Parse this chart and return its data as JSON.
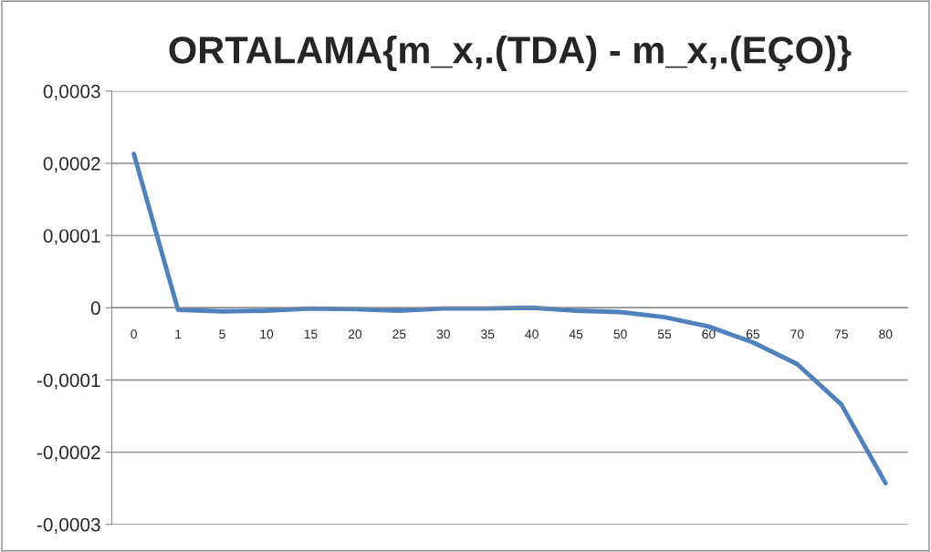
{
  "chart_data": {
    "type": "line",
    "title": "ORTALAMA{m_x,.(TDA) - m_x,.(EÇO)}",
    "categories": [
      "0",
      "1",
      "5",
      "10",
      "15",
      "20",
      "25",
      "30",
      "35",
      "40",
      "45",
      "50",
      "55",
      "60",
      "65",
      "70",
      "75",
      "80"
    ],
    "series": [
      {
        "color": "#4f81bd",
        "values": [
          0.000213,
          -3e-06,
          -5e-06,
          -4e-06,
          -1e-06,
          -2e-06,
          -4e-06,
          -1e-06,
          -1e-06,
          0.0,
          -4e-06,
          -6e-06,
          -1.3e-05,
          -2.6e-05,
          -4.8e-05,
          -7.8e-05,
          -0.000134,
          -0.000243
        ]
      }
    ],
    "ylim": [
      -0.0003,
      0.0003
    ],
    "yticks": [
      {
        "value": -0.0003,
        "label": "-0,0003"
      },
      {
        "value": -0.0002,
        "label": "-0,0002"
      },
      {
        "value": -0.0001,
        "label": "-0,0001"
      },
      {
        "value": 0,
        "label": "0"
      },
      {
        "value": 0.0001,
        "label": "0,0001"
      },
      {
        "value": 0.0002,
        "label": "0,0002"
      },
      {
        "value": 0.0003,
        "label": "0,0003"
      }
    ],
    "grid": "y",
    "legend": false,
    "marker": "none",
    "line_style": "solid"
  }
}
